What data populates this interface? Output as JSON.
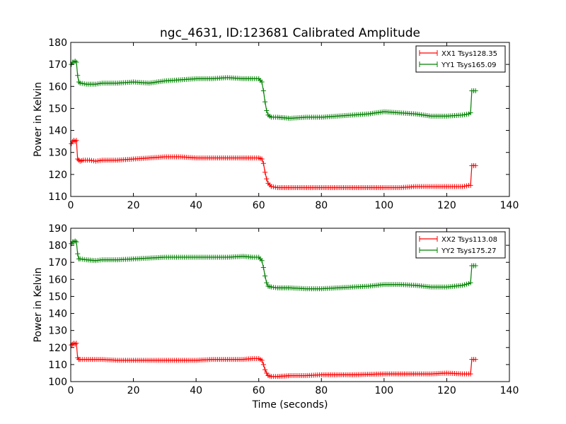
{
  "figure": {
    "title": "ngc_4631, ID:123681 Calibrated Amplitude"
  },
  "chart_data": [
    {
      "type": "line",
      "title": "ngc_4631, ID:123681 Calibrated Amplitude",
      "xlabel": "",
      "ylabel": "Power in Kelvin",
      "xlim": [
        0,
        140
      ],
      "ylim": [
        110,
        180
      ],
      "xticks": [
        0,
        20,
        40,
        60,
        80,
        100,
        120,
        140
      ],
      "yticks": [
        110,
        120,
        130,
        140,
        150,
        160,
        170,
        180
      ],
      "grid": false,
      "legend_position": "top-right",
      "marker": "+",
      "series": [
        {
          "name": "XX1 Tsys128.35",
          "color": "#ff0000",
          "points": [
            [
              0.2,
              134
            ],
            [
              0.6,
              135
            ],
            [
              1,
              135.5
            ],
            [
              1.4,
              135
            ],
            [
              1.8,
              135.5
            ],
            [
              2.2,
              127
            ],
            [
              2.6,
              126.5
            ],
            [
              3,
              126
            ],
            [
              4,
              126.5
            ],
            [
              6,
              126.5
            ],
            [
              8,
              126
            ],
            [
              10,
              126.5
            ],
            [
              15,
              126.5
            ],
            [
              20,
              127
            ],
            [
              25,
              127.5
            ],
            [
              30,
              128
            ],
            [
              35,
              128
            ],
            [
              40,
              127.5
            ],
            [
              45,
              127.5
            ],
            [
              50,
              127.5
            ],
            [
              55,
              127.5
            ],
            [
              58,
              127.5
            ],
            [
              60,
              127.5
            ],
            [
              61,
              127
            ],
            [
              61.5,
              125
            ],
            [
              62,
              121
            ],
            [
              62.5,
              118
            ],
            [
              63,
              116
            ],
            [
              64,
              114.5
            ],
            [
              66,
              114
            ],
            [
              70,
              114
            ],
            [
              80,
              114
            ],
            [
              90,
              114
            ],
            [
              100,
              114
            ],
            [
              105,
              114
            ],
            [
              110,
              114.5
            ],
            [
              115,
              114.5
            ],
            [
              120,
              114.5
            ],
            [
              125,
              114.5
            ],
            [
              127,
              115
            ],
            [
              127.6,
              115
            ],
            [
              128,
              124
            ],
            [
              128.6,
              124
            ],
            [
              129.2,
              124
            ]
          ]
        },
        {
          "name": "YY1 Tsys165.09",
          "color": "#008000",
          "points": [
            [
              0.2,
              170
            ],
            [
              0.6,
              171
            ],
            [
              1,
              171
            ],
            [
              1.4,
              171.5
            ],
            [
              1.8,
              171
            ],
            [
              2.2,
              165
            ],
            [
              2.6,
              162
            ],
            [
              3,
              161.5
            ],
            [
              5,
              161
            ],
            [
              8,
              161
            ],
            [
              10,
              161.5
            ],
            [
              15,
              161.5
            ],
            [
              20,
              162
            ],
            [
              25,
              161.5
            ],
            [
              30,
              162.5
            ],
            [
              35,
              163
            ],
            [
              40,
              163.5
            ],
            [
              45,
              163.5
            ],
            [
              50,
              164
            ],
            [
              55,
              163.5
            ],
            [
              58,
              163.5
            ],
            [
              60,
              163.5
            ],
            [
              61,
              162
            ],
            [
              61.5,
              158
            ],
            [
              62,
              153
            ],
            [
              62.5,
              149
            ],
            [
              63,
              147
            ],
            [
              64,
              146
            ],
            [
              66,
              146
            ],
            [
              70,
              145.5
            ],
            [
              75,
              146
            ],
            [
              80,
              146
            ],
            [
              85,
              146.5
            ],
            [
              90,
              147
            ],
            [
              95,
              147.5
            ],
            [
              100,
              148.5
            ],
            [
              105,
              148
            ],
            [
              110,
              147.5
            ],
            [
              115,
              146.5
            ],
            [
              120,
              146.5
            ],
            [
              125,
              147
            ],
            [
              127,
              147.5
            ],
            [
              127.6,
              148
            ],
            [
              128,
              158
            ],
            [
              128.6,
              158
            ],
            [
              129.2,
              158
            ]
          ]
        }
      ]
    },
    {
      "type": "line",
      "title": "",
      "xlabel": "Time (seconds)",
      "ylabel": "Power in Kelvin",
      "xlim": [
        0,
        140
      ],
      "ylim": [
        100,
        190
      ],
      "xticks": [
        0,
        20,
        40,
        60,
        80,
        100,
        120,
        140
      ],
      "yticks": [
        100,
        110,
        120,
        130,
        140,
        150,
        160,
        170,
        180,
        190
      ],
      "grid": false,
      "legend_position": "top-right",
      "marker": "+",
      "series": [
        {
          "name": "XX2 Tsys113.08",
          "color": "#ff0000",
          "points": [
            [
              0.2,
              121.5
            ],
            [
              0.6,
              122
            ],
            [
              1,
              122.5
            ],
            [
              1.4,
              122
            ],
            [
              1.8,
              122.5
            ],
            [
              2.2,
              114
            ],
            [
              2.6,
              113
            ],
            [
              3,
              113
            ],
            [
              5,
              113
            ],
            [
              10,
              113
            ],
            [
              15,
              112.5
            ],
            [
              20,
              112.5
            ],
            [
              25,
              112.5
            ],
            [
              30,
              112.5
            ],
            [
              35,
              112.5
            ],
            [
              40,
              112.5
            ],
            [
              45,
              113
            ],
            [
              50,
              113
            ],
            [
              55,
              113
            ],
            [
              58,
              113.5
            ],
            [
              60,
              113.5
            ],
            [
              61,
              112.5
            ],
            [
              61.5,
              110
            ],
            [
              62,
              107
            ],
            [
              62.5,
              105
            ],
            [
              63,
              103.5
            ],
            [
              64,
              103
            ],
            [
              66,
              103
            ],
            [
              70,
              103.5
            ],
            [
              75,
              103.5
            ],
            [
              80,
              104
            ],
            [
              90,
              104
            ],
            [
              100,
              104.5
            ],
            [
              110,
              104.5
            ],
            [
              115,
              104.5
            ],
            [
              120,
              105
            ],
            [
              125,
              104.5
            ],
            [
              127,
              104.5
            ],
            [
              127.6,
              104.5
            ],
            [
              128,
              113
            ],
            [
              128.6,
              113
            ],
            [
              129.2,
              113
            ]
          ]
        },
        {
          "name": "YY2 Tsys175.27",
          "color": "#008000",
          "points": [
            [
              0.2,
              181
            ],
            [
              0.6,
              182
            ],
            [
              1,
              182
            ],
            [
              1.4,
              182.5
            ],
            [
              1.8,
              182
            ],
            [
              2.2,
              175
            ],
            [
              2.6,
              172
            ],
            [
              3,
              172
            ],
            [
              5,
              171.5
            ],
            [
              8,
              171
            ],
            [
              10,
              171.5
            ],
            [
              15,
              171.5
            ],
            [
              20,
              172
            ],
            [
              25,
              172.5
            ],
            [
              30,
              173
            ],
            [
              35,
              173
            ],
            [
              40,
              173
            ],
            [
              45,
              173
            ],
            [
              50,
              173
            ],
            [
              55,
              173.5
            ],
            [
              58,
              173
            ],
            [
              60,
              173
            ],
            [
              61,
              171
            ],
            [
              61.5,
              167
            ],
            [
              62,
              162
            ],
            [
              62.5,
              158
            ],
            [
              63,
              156
            ],
            [
              64,
              155.5
            ],
            [
              66,
              155
            ],
            [
              70,
              155
            ],
            [
              75,
              154.5
            ],
            [
              80,
              154.5
            ],
            [
              85,
              155
            ],
            [
              90,
              155.5
            ],
            [
              95,
              156
            ],
            [
              100,
              157
            ],
            [
              105,
              157
            ],
            [
              110,
              156.5
            ],
            [
              115,
              155.5
            ],
            [
              120,
              155.5
            ],
            [
              125,
              156.5
            ],
            [
              127,
              157.5
            ],
            [
              127.6,
              158
            ],
            [
              128,
              168
            ],
            [
              128.6,
              168
            ],
            [
              129.2,
              168
            ]
          ]
        }
      ]
    }
  ]
}
